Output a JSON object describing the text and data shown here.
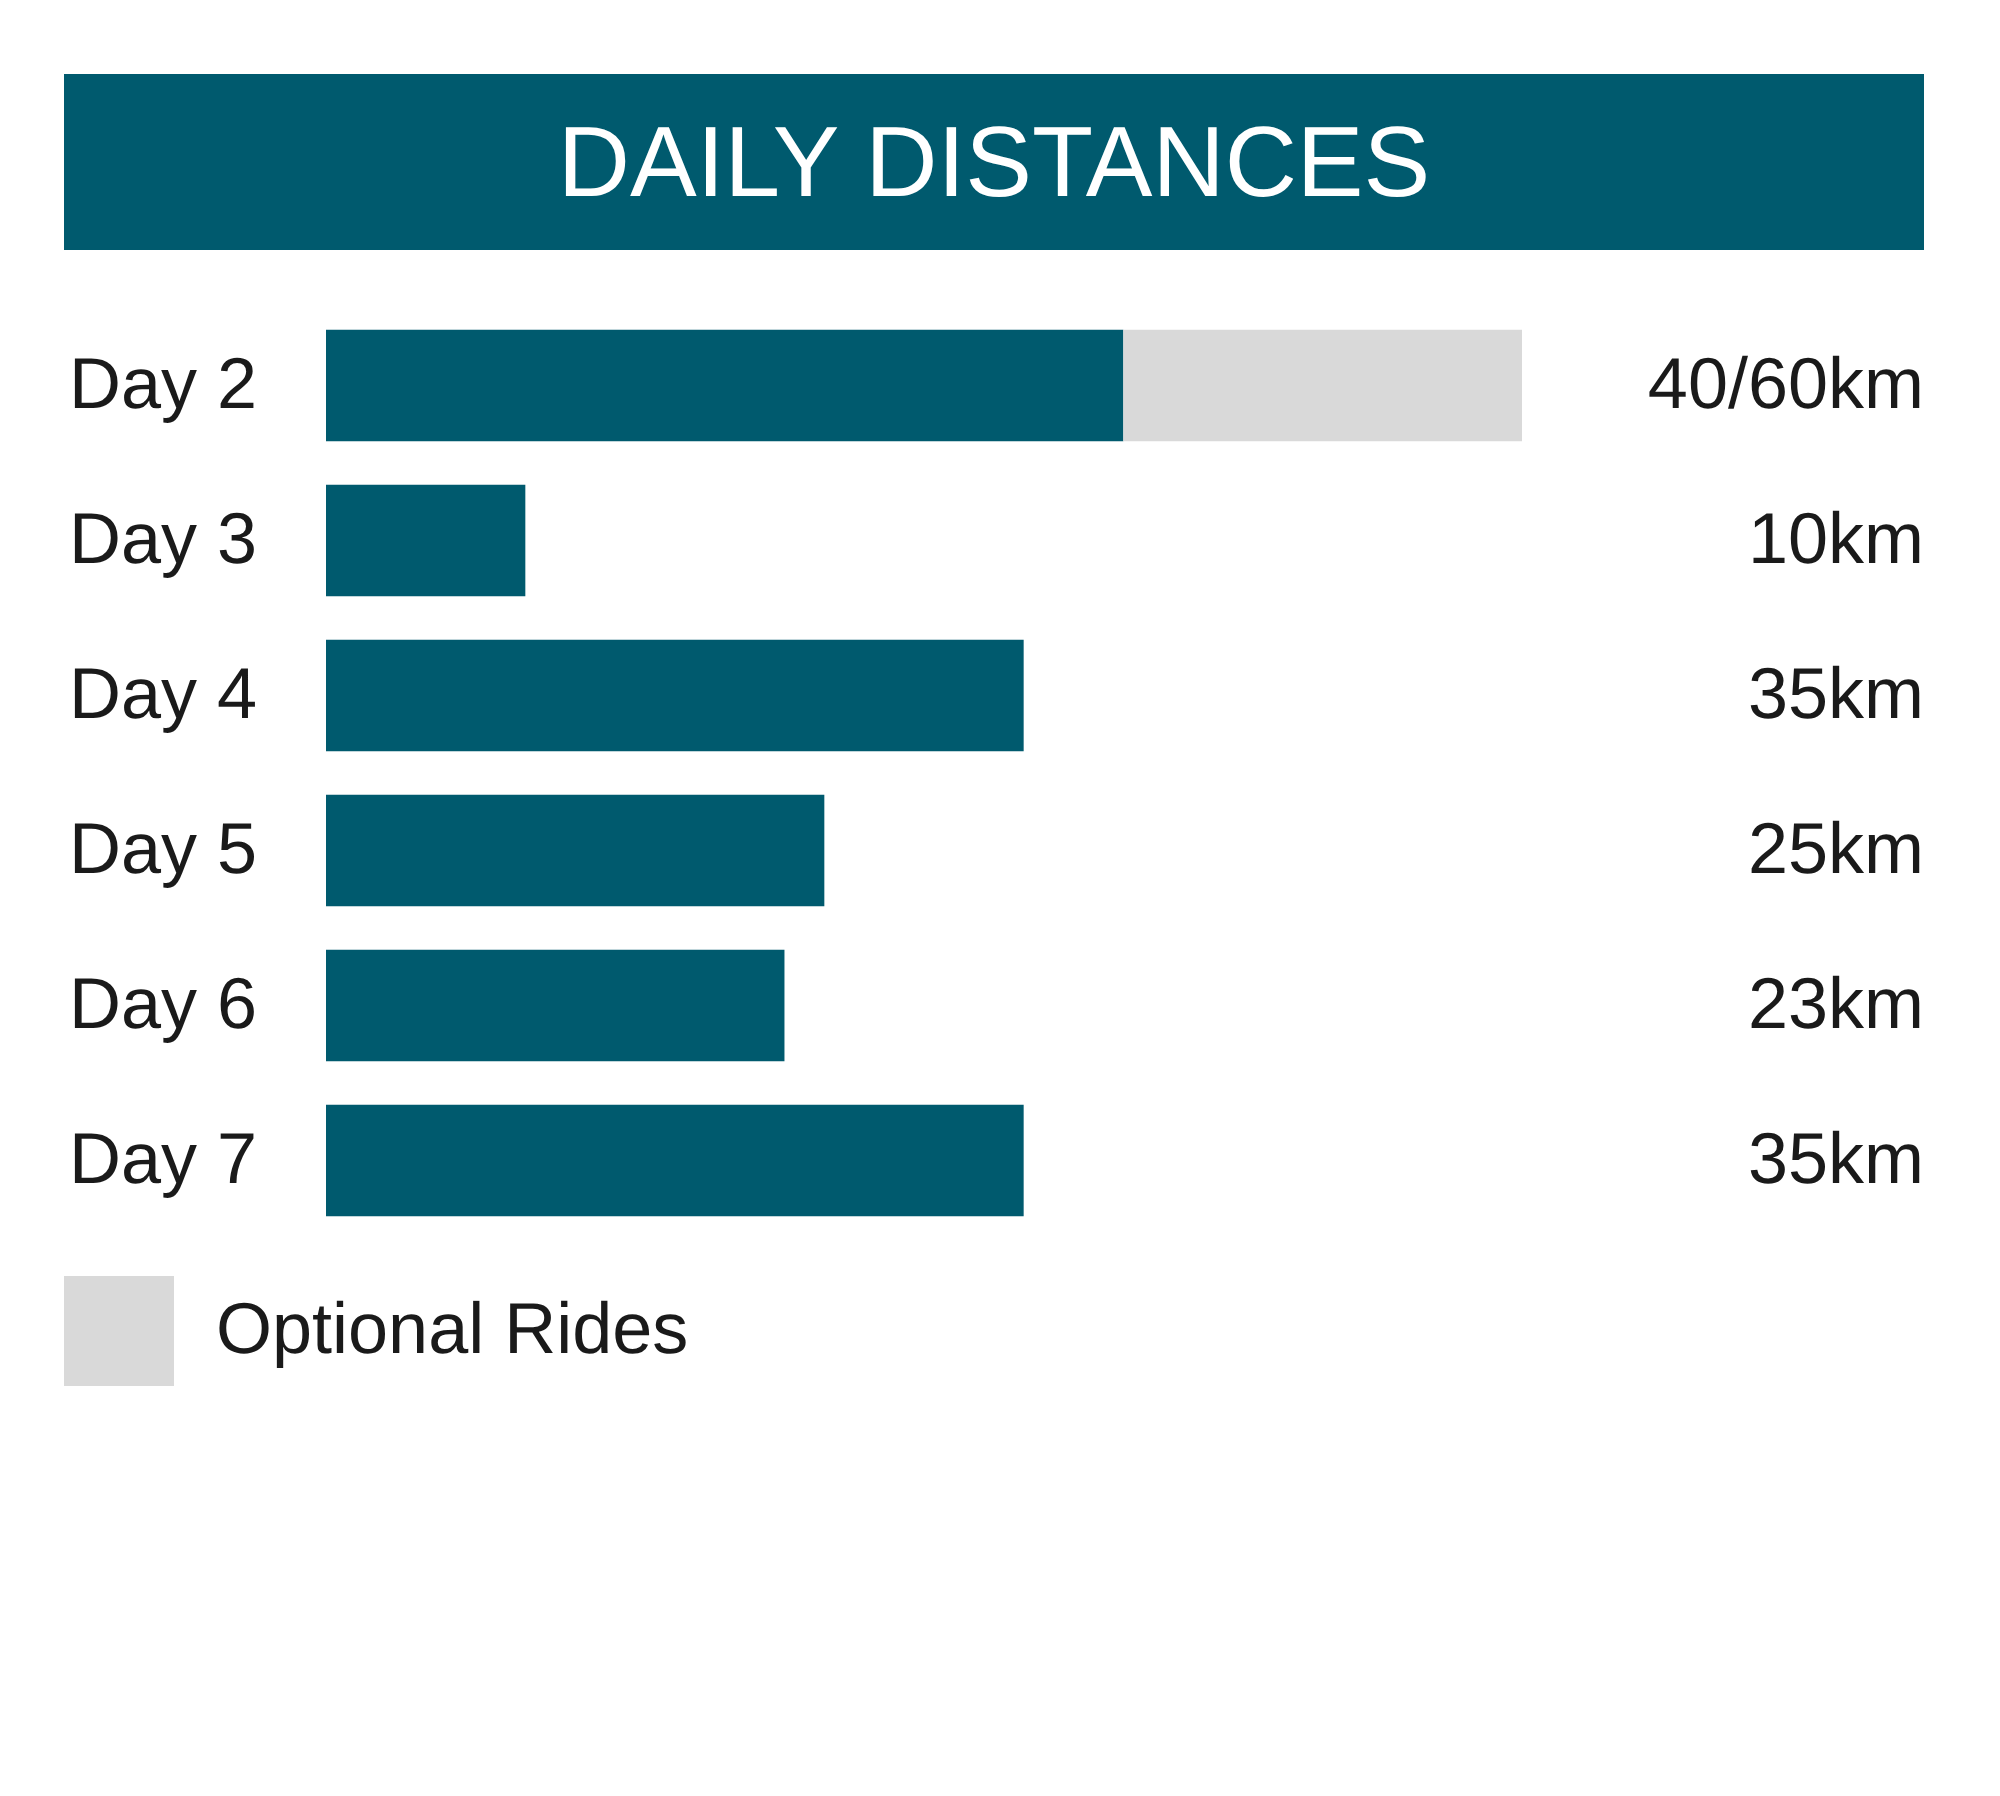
{
  "chart_data": {
    "type": "bar",
    "orientation": "horizontal",
    "stacked": true,
    "title": "DAILY DISTANCES",
    "categories": [
      "Day 2",
      "Day 3",
      "Day 4",
      "Day 5",
      "Day 6",
      "Day 7"
    ],
    "series": [
      {
        "color": "#005a6e",
        "values": [
          40,
          10,
          35,
          25,
          23,
          35
        ],
        "value_labels": [
          "40/60km",
          "10km",
          "35km",
          "25km",
          "23km",
          "35km"
        ]
      },
      {
        "name": "Optional Rides",
        "color": "#d9d9d9",
        "values": [
          20,
          null,
          null,
          null,
          null,
          null
        ]
      }
    ],
    "legend": "bottom left"
  }
}
